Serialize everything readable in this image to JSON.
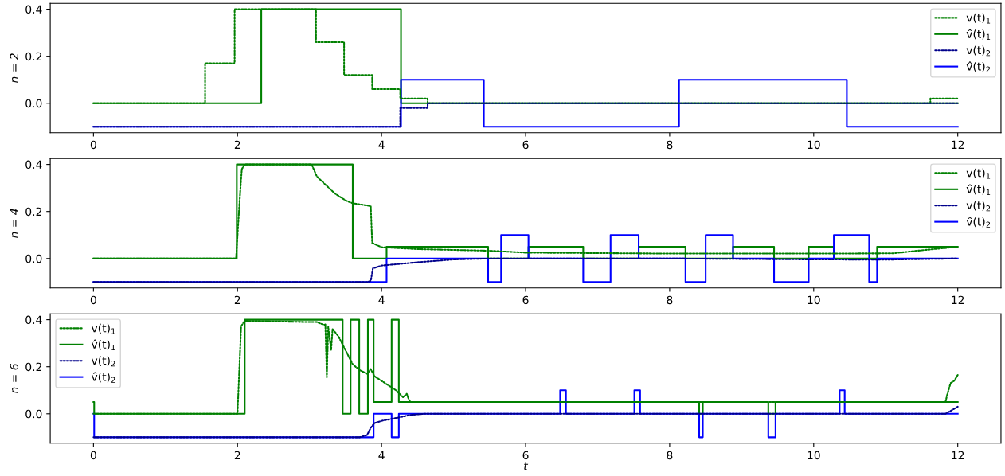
{
  "chart_data": [
    {
      "type": "step",
      "ylabel": "n = 2",
      "xlim": [
        -0.6,
        12.6
      ],
      "ylim": [
        -0.125,
        0.425
      ],
      "xticks": [
        0,
        2,
        4,
        6,
        8,
        10,
        12
      ],
      "yticks": [
        {
          "value": 0,
          "label": "0.0"
        },
        {
          "value": 0.2,
          "label": "0.2"
        },
        {
          "value": 0.4,
          "label": "0.4"
        }
      ],
      "grid": false,
      "legend": "top right",
      "series": [
        {
          "name": "v(t)$_{1}$",
          "color": "#008000",
          "line_style": "dotted",
          "x": [
            0,
            1.55,
            1.96,
            3.09,
            3.48,
            3.87,
            4.26,
            4.64,
            11.62,
            12
          ],
          "values": [
            0,
            0.17,
            0.4,
            0.26,
            0.12,
            0.06,
            0.02,
            0,
            0.02,
            0.02
          ]
        },
        {
          "name": "v̂(t)$_{1}$",
          "color": "#008000",
          "line_style": "solid",
          "x": [
            0,
            2.33,
            4.27,
            12
          ],
          "values": [
            0,
            0.4,
            0,
            0
          ]
        },
        {
          "name": "v(t)$_{2}$",
          "color": "#00008b",
          "line_style": "dotted",
          "x": [
            0,
            4.26,
            4.64,
            12
          ],
          "values": [
            -0.1,
            -0.02,
            0,
            0
          ]
        },
        {
          "name": "v̂(t)$_{2}$",
          "color": "#0000ff",
          "line_style": "solid",
          "x": [
            0,
            4.27,
            5.42,
            8.13,
            10.46,
            12
          ],
          "values": [
            -0.1,
            0.1,
            -0.1,
            0.1,
            -0.1,
            -0.1
          ]
        }
      ]
    },
    {
      "type": "step",
      "ylabel": "n = 4",
      "xlim": [
        -0.6,
        12.6
      ],
      "ylim": [
        -0.125,
        0.425
      ],
      "xticks": [
        0,
        2,
        4,
        6,
        8,
        10,
        12
      ],
      "yticks": [
        {
          "value": 0,
          "label": "0.0"
        },
        {
          "value": 0.2,
          "label": "0.2"
        },
        {
          "value": 0.4,
          "label": "0.4"
        }
      ],
      "grid": false,
      "legend": "top right",
      "series": [
        {
          "name": "v(t)$_{1}$",
          "color": "#008000",
          "line_style": "dotted",
          "type": "line",
          "x": [
            0,
            1.98,
            2.04,
            2.06,
            2.1,
            3.03,
            3.1,
            3.2,
            3.35,
            3.5,
            3.6,
            3.85,
            3.87,
            4.0,
            4.5,
            5.5,
            6,
            8,
            10,
            11.1,
            11.5,
            12
          ],
          "values": [
            0,
            0,
            0.295,
            0.38,
            0.4,
            0.4,
            0.35,
            0.32,
            0.277,
            0.247,
            0.235,
            0.223,
            0.066,
            0.048,
            0.04,
            0.033,
            0.025,
            0.021,
            0.021,
            0.022,
            0.035,
            0.05
          ]
        },
        {
          "name": "v̂(t)$_{1}$",
          "color": "#008000",
          "line_style": "solid",
          "x": [
            0,
            1.99,
            3.6,
            4.07,
            5.48,
            6.04,
            6.8,
            7.57,
            8.22,
            8.88,
            9.45,
            9.93,
            10.28,
            10.88,
            12
          ],
          "values": [
            0,
            0.4,
            0,
            0.05,
            0,
            0.05,
            0,
            0.05,
            0,
            0.05,
            0,
            0.05,
            0,
            0.05,
            0.05
          ]
        },
        {
          "name": "v(t)$_{2}$",
          "color": "#00008b",
          "line_style": "dotted",
          "type": "line",
          "x": [
            0,
            3.8,
            3.85,
            3.88,
            4.0,
            4.5,
            5.0,
            5.5,
            6,
            8,
            10,
            11,
            12
          ],
          "values": [
            -0.1,
            -0.1,
            -0.095,
            -0.042,
            -0.03,
            -0.016,
            -0.004,
            0,
            0,
            0,
            -0.004,
            -0.005,
            0
          ]
        },
        {
          "name": "v̂(t)$_{2}$",
          "color": "#0000ff",
          "line_style": "solid",
          "x": [
            0,
            4.07,
            5.48,
            5.66,
            6.04,
            6.8,
            7.18,
            7.57,
            8.22,
            8.5,
            8.88,
            9.45,
            9.93,
            10.28,
            10.77,
            10.88,
            12
          ],
          "values": [
            -0.1,
            0,
            -0.1,
            0.1,
            0,
            -0.1,
            0.1,
            0,
            -0.1,
            0.1,
            0,
            -0.1,
            0,
            0.1,
            -0.1,
            0,
            0
          ]
        }
      ]
    },
    {
      "type": "step",
      "ylabel": "n = 6",
      "xlabel": "t",
      "xlim": [
        -0.6,
        12.6
      ],
      "ylim": [
        -0.125,
        0.425
      ],
      "xticks": [
        0,
        2,
        4,
        6,
        8,
        10,
        12
      ],
      "yticks": [
        {
          "value": 0,
          "label": "0.0"
        },
        {
          "value": 0.2,
          "label": "0.2"
        },
        {
          "value": 0.4,
          "label": "0.4"
        }
      ],
      "grid": false,
      "legend": "top left",
      "series": [
        {
          "name": "v(t)$_{1}$",
          "color": "#008000",
          "line_style": "dotted",
          "type": "line",
          "x": [
            0,
            2.0,
            2.05,
            2.1,
            3.0,
            3.1,
            3.2,
            3.22,
            3.24,
            3.26,
            3.3,
            3.32,
            3.4,
            3.5,
            3.6,
            3.7,
            3.8,
            3.85,
            3.9,
            4.0,
            4.1,
            4.2,
            4.3,
            4.35,
            4.38,
            4.4,
            11.83,
            11.85,
            11.9,
            11.95,
            12
          ],
          "values": [
            0,
            0,
            0.372,
            0.395,
            0.39,
            0.39,
            0.378,
            0.38,
            0.155,
            0.37,
            0.27,
            0.36,
            0.33,
            0.27,
            0.21,
            0.185,
            0.17,
            0.19,
            0.16,
            0.14,
            0.12,
            0.1,
            0.07,
            0.085,
            0.06,
            0.05,
            0.05,
            0.077,
            0.13,
            0.14,
            0.165
          ]
        },
        {
          "name": "v̂(t)$_{1}$",
          "color": "#008000",
          "line_style": "solid",
          "x": [
            0,
            0.01,
            2.1,
            3.46,
            3.57,
            3.69,
            3.81,
            3.89,
            4.14,
            4.24,
            8.41,
            8.46,
            9.37,
            9.47,
            12
          ],
          "values": [
            0.05,
            0,
            0.4,
            0,
            0.4,
            0,
            0.4,
            0.05,
            0.4,
            0.05,
            0,
            0.05,
            0,
            0.05,
            0.05
          ]
        },
        {
          "name": "v(t)$_{2}$",
          "color": "#00008b",
          "line_style": "dotted",
          "type": "line",
          "x": [
            0,
            3.7,
            3.8,
            3.85,
            3.9,
            4.0,
            4.2,
            4.4,
            4.6,
            11.83,
            12
          ],
          "values": [
            -0.1,
            -0.1,
            -0.09,
            -0.06,
            -0.04,
            -0.03,
            -0.018,
            -0.005,
            0,
            0,
            0.03
          ]
        },
        {
          "name": "v̂(t)$_{2}$",
          "color": "#0000ff",
          "line_style": "solid",
          "x": [
            0,
            0.01,
            3.89,
            4.14,
            4.24,
            6.48,
            6.56,
            7.51,
            7.59,
            8.41,
            8.46,
            9.37,
            9.47,
            10.36,
            10.43,
            12
          ],
          "values": [
            0,
            -0.1,
            0,
            -0.1,
            0,
            0.1,
            0,
            0.1,
            0,
            -0.1,
            0,
            -0.1,
            0,
            0.1,
            0,
            0
          ]
        }
      ]
    }
  ]
}
